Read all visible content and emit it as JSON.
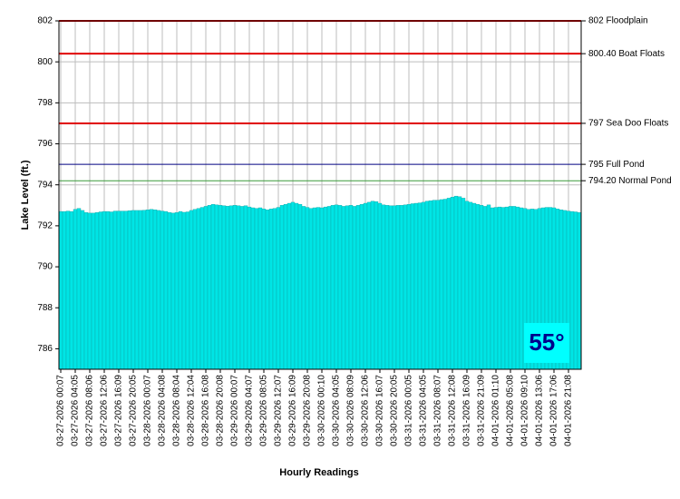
{
  "chart_data": {
    "type": "bar",
    "y_axis_label": "Lake Level (ft.)",
    "x_axis_label": "Hourly Readings",
    "annotation": "55°",
    "color": "#00e5e5",
    "grid": true,
    "ylim": [
      785,
      802
    ],
    "yticks": [
      786,
      788,
      790,
      792,
      794,
      796,
      798,
      800,
      802
    ],
    "reference_lines": [
      {
        "value": 802,
        "label": "802 Floodplain",
        "color": "#e00000"
      },
      {
        "value": 800.4,
        "label": "800.40 Boat Floats",
        "color": "#e00000"
      },
      {
        "value": 797,
        "label": "797 Sea Doo Floats",
        "color": "#e00000"
      },
      {
        "value": 795,
        "label": "795 Full Pond",
        "color": "#000080"
      },
      {
        "value": 794.2,
        "label": "794.20 Normal Pond",
        "color": "#3a9a3a"
      }
    ],
    "categories": [
      "03-27-2026 00:07",
      null,
      null,
      null,
      "03-27-2026 04:05",
      null,
      null,
      null,
      "03-27-2026 08:06",
      null,
      null,
      null,
      "03-27-2026 12:06",
      null,
      null,
      null,
      "03-27-2026 16:09",
      null,
      null,
      null,
      "03-27-2026 20:05",
      null,
      null,
      null,
      "03-28-2026 00:07",
      null,
      null,
      null,
      "03-28-2026 04:08",
      null,
      null,
      null,
      "03-28-2026 08:04",
      null,
      null,
      null,
      "03-28-2026 12:04",
      null,
      null,
      null,
      "03-28-2026 16:08",
      null,
      null,
      null,
      "03-28-2026 20:08",
      null,
      null,
      null,
      "03-29-2026 00:07",
      null,
      null,
      null,
      "03-29-2026 04:07",
      null,
      null,
      null,
      "03-29-2026 08:05",
      null,
      null,
      null,
      "03-29-2026 12:07",
      null,
      null,
      null,
      "03-29-2026 16:09",
      null,
      null,
      null,
      "03-29-2026 20:08",
      null,
      null,
      null,
      "03-30-2026 00:10",
      null,
      null,
      null,
      "03-30-2026 04:05",
      null,
      null,
      null,
      "03-30-2026 08:09",
      null,
      null,
      null,
      "03-30-2026 12:06",
      null,
      null,
      null,
      "03-30-2026 16:07",
      null,
      null,
      null,
      "03-30-2026 20:05",
      null,
      null,
      null,
      "03-31-2026 00:05",
      null,
      null,
      null,
      "03-31-2026 04:05",
      null,
      null,
      null,
      "03-31-2026 08:07",
      null,
      null,
      null,
      "03-31-2026 12:08",
      null,
      null,
      null,
      "03-31-2026 16:09",
      null,
      null,
      null,
      "03-31-2026 21:09",
      null,
      null,
      null,
      "04-01-2026 01:10",
      null,
      null,
      null,
      "04-01-2026 05:08",
      null,
      null,
      null,
      "04-01-2026 09:10",
      null,
      null,
      null,
      "04-01-2026 13:06",
      null,
      null,
      null,
      "04-01-2026 17:06",
      null,
      null,
      null,
      "04-01-2026 21:08",
      null,
      null,
      null
    ],
    "values": [
      792.7,
      792.7,
      792.72,
      792.7,
      792.8,
      792.85,
      792.75,
      792.65,
      792.62,
      792.62,
      792.65,
      792.68,
      792.7,
      792.7,
      792.68,
      792.72,
      792.72,
      792.72,
      792.72,
      792.74,
      792.75,
      792.75,
      792.75,
      792.76,
      792.78,
      792.8,
      792.78,
      792.75,
      792.72,
      792.7,
      792.65,
      792.62,
      792.65,
      792.7,
      792.66,
      792.68,
      792.75,
      792.8,
      792.85,
      792.9,
      792.95,
      793.0,
      793.05,
      793.02,
      793.0,
      792.98,
      792.96,
      792.98,
      793.0,
      792.98,
      792.95,
      792.98,
      792.92,
      792.88,
      792.85,
      792.88,
      792.82,
      792.78,
      792.82,
      792.85,
      792.9,
      793.0,
      793.05,
      793.1,
      793.15,
      793.1,
      793.05,
      792.95,
      792.9,
      792.85,
      792.88,
      792.9,
      792.88,
      792.92,
      792.95,
      793.0,
      793.02,
      793.0,
      792.95,
      792.98,
      793.0,
      792.95,
      793.0,
      793.05,
      793.1,
      793.15,
      793.2,
      793.18,
      793.1,
      793.02,
      793.0,
      792.98,
      792.98,
      793.0,
      793.0,
      793.02,
      793.05,
      793.08,
      793.1,
      793.12,
      793.15,
      793.2,
      793.22,
      793.25,
      793.25,
      793.28,
      793.3,
      793.35,
      793.4,
      793.45,
      793.42,
      793.35,
      793.2,
      793.15,
      793.1,
      793.05,
      793.0,
      792.95,
      793.02,
      792.88,
      792.9,
      792.92,
      792.9,
      792.92,
      792.95,
      792.95,
      792.92,
      792.88,
      792.85,
      792.8,
      792.82,
      792.8,
      792.85,
      792.88,
      792.9,
      792.9,
      792.88,
      792.82,
      792.78,
      792.75,
      792.72,
      792.7,
      792.68,
      792.65
    ]
  }
}
